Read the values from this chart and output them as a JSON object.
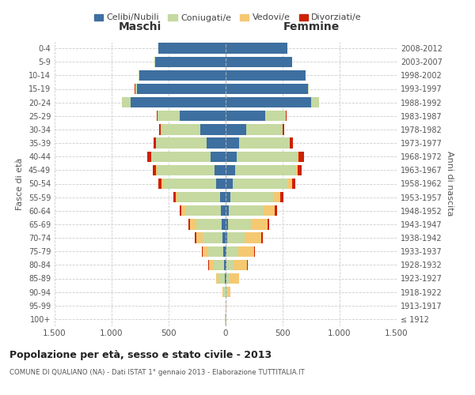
{
  "age_groups": [
    "100+",
    "95-99",
    "90-94",
    "85-89",
    "80-84",
    "75-79",
    "70-74",
    "65-69",
    "60-64",
    "55-59",
    "50-54",
    "45-49",
    "40-44",
    "35-39",
    "30-34",
    "25-29",
    "20-24",
    "15-19",
    "10-14",
    "5-9",
    "0-4"
  ],
  "birth_years": [
    "≤ 1912",
    "1913-1917",
    "1918-1922",
    "1923-1927",
    "1928-1932",
    "1933-1937",
    "1938-1942",
    "1943-1947",
    "1948-1952",
    "1953-1957",
    "1958-1962",
    "1963-1967",
    "1968-1972",
    "1973-1977",
    "1978-1982",
    "1983-1987",
    "1988-1992",
    "1993-1997",
    "1998-2002",
    "2003-2007",
    "2008-2012"
  ],
  "males": {
    "celibi": [
      2,
      1,
      3,
      10,
      15,
      20,
      30,
      35,
      40,
      50,
      80,
      100,
      130,
      170,
      220,
      400,
      830,
      780,
      760,
      620,
      590
    ],
    "coniugati": [
      2,
      2,
      20,
      50,
      90,
      130,
      170,
      220,
      310,
      370,
      470,
      500,
      520,
      440,
      350,
      200,
      80,
      15,
      5,
      2,
      1
    ],
    "vedovi": [
      0,
      0,
      5,
      20,
      40,
      50,
      60,
      60,
      40,
      20,
      15,
      10,
      5,
      2,
      1,
      0,
      0,
      0,
      0,
      0,
      0
    ],
    "divorziati": [
      0,
      0,
      0,
      2,
      5,
      10,
      10,
      10,
      15,
      20,
      25,
      30,
      30,
      20,
      15,
      5,
      2,
      1,
      0,
      0,
      0
    ]
  },
  "females": {
    "nubili": [
      2,
      1,
      3,
      5,
      8,
      10,
      15,
      20,
      30,
      40,
      60,
      80,
      100,
      120,
      180,
      350,
      750,
      720,
      700,
      580,
      540
    ],
    "coniugate": [
      1,
      2,
      10,
      30,
      60,
      100,
      150,
      200,
      300,
      380,
      480,
      530,
      530,
      440,
      320,
      180,
      70,
      10,
      3,
      1,
      0
    ],
    "vedove": [
      2,
      3,
      30,
      80,
      120,
      140,
      150,
      150,
      100,
      60,
      40,
      20,
      10,
      5,
      2,
      1,
      0,
      0,
      0,
      0,
      0
    ],
    "divorziate": [
      0,
      0,
      2,
      3,
      5,
      8,
      10,
      15,
      20,
      25,
      30,
      40,
      45,
      25,
      15,
      5,
      2,
      1,
      0,
      0,
      0
    ]
  },
  "color_celibi": "#3d6fa0",
  "color_coniugati": "#c5d9a0",
  "color_vedovi": "#f5c872",
  "color_divorziati": "#cc2200",
  "title_main": "Popolazione per età, sesso e stato civile - 2013",
  "title_sub": "COMUNE DI QUALIANO (NA) - Dati ISTAT 1° gennaio 2013 - Elaborazione TUTTITALIA.IT",
  "xlabel_left": "Maschi",
  "xlabel_right": "Femmine",
  "ylabel_left": "Fasce di età",
  "ylabel_right": "Anni di nascita",
  "xlim": 1500,
  "legend_labels": [
    "Celibi/Nubili",
    "Coniugati/e",
    "Vedovi/e",
    "Divorziati/e"
  ],
  "bg_color": "#ffffff",
  "grid_color": "#cccccc"
}
